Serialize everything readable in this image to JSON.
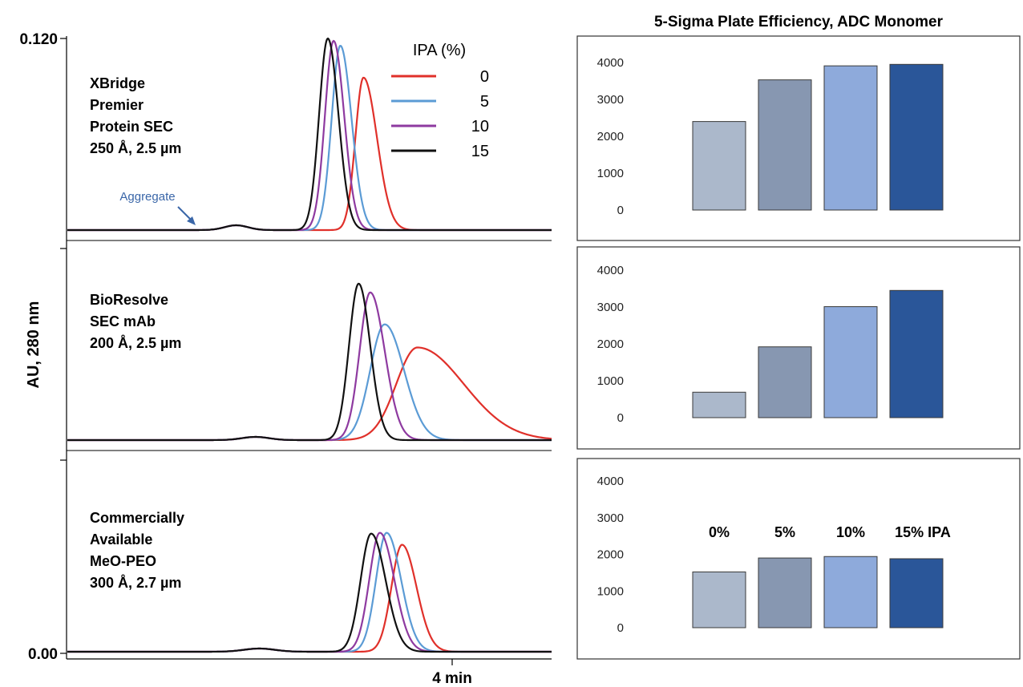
{
  "chart_data": [
    {
      "type": "line",
      "ylabel": "AU, 280 nm",
      "xlabel": "",
      "x_tick_label": "4 min",
      "y_top_label": "0.120",
      "y_bottom_label": "0.00",
      "legend_title": "IPA (%)",
      "legend_placement": "top-right",
      "legend": [
        "0",
        "5",
        "10",
        "15"
      ],
      "colors": [
        "#e0302a",
        "#5b9bd5",
        "#8e3aa0",
        "#111111"
      ],
      "xlim": [
        2,
        5.2
      ],
      "x_tick": 4,
      "ylim": [
        0,
        0.12
      ],
      "annotation": "Aggregate",
      "panels": [
        {
          "column": [
            "XBridge",
            "Premier",
            "Protein SEC",
            "250 Å, 2.5 µm"
          ],
          "aggregate": {
            "pos": 2.88,
            "height": 0.003,
            "width": 0.06
          },
          "series": [
            {
              "name": "0",
              "center": 3.54,
              "height": 0.0955,
              "sl": 0.042,
              "sr": 0.07
            },
            {
              "name": "5",
              "center": 3.42,
              "height": 0.1155,
              "sl": 0.045,
              "sr": 0.058
            },
            {
              "name": "10",
              "center": 3.385,
              "height": 0.1185,
              "sl": 0.045,
              "sr": 0.055
            },
            {
              "name": "15",
              "center": 3.355,
              "height": 0.12,
              "sl": 0.045,
              "sr": 0.055
            }
          ]
        },
        {
          "column": [
            "BioResolve",
            "SEC mAb",
            "200 Å, 2.5 µm"
          ],
          "aggregate": {
            "pos": 2.98,
            "height": 0.002,
            "width": 0.07
          },
          "series": [
            {
              "name": "0",
              "center": 3.82,
              "height": 0.058,
              "sl": 0.11,
              "sr": 0.24
            },
            {
              "name": "5",
              "center": 3.65,
              "height": 0.0725,
              "sl": 0.075,
              "sr": 0.1
            },
            {
              "name": "10",
              "center": 3.575,
              "height": 0.0925,
              "sl": 0.055,
              "sr": 0.075
            },
            {
              "name": "15",
              "center": 3.515,
              "height": 0.098,
              "sl": 0.05,
              "sr": 0.06
            }
          ]
        },
        {
          "column": [
            "Commercially",
            "Available",
            "MeO-PEO",
            "300 Å, 2.7 µm"
          ],
          "aggregate": {
            "pos": 3.0,
            "height": 0.002,
            "width": 0.08
          },
          "series": [
            {
              "name": "0",
              "center": 3.74,
              "height": 0.067,
              "sl": 0.055,
              "sr": 0.075
            },
            {
              "name": "5",
              "center": 3.66,
              "height": 0.0745,
              "sl": 0.055,
              "sr": 0.075
            },
            {
              "name": "10",
              "center": 3.625,
              "height": 0.0745,
              "sl": 0.055,
              "sr": 0.075
            },
            {
              "name": "15",
              "center": 3.58,
              "height": 0.074,
              "sl": 0.055,
              "sr": 0.075
            }
          ]
        }
      ]
    },
    {
      "type": "bar",
      "title": "5-Sigma Plate Efficiency, ADC Monomer",
      "categories": [
        "0%",
        "5%",
        "10%",
        "15% IPA"
      ],
      "colors": [
        "#abb8cb",
        "#8797b1",
        "#8eaadb",
        "#2a5699"
      ],
      "ylim": [
        0,
        4000
      ],
      "yticks": [
        0,
        1000,
        2000,
        3000,
        4000
      ],
      "category_labels_panel": 3,
      "panels": [
        {
          "values": [
            2400,
            3530,
            3910,
            3950
          ]
        },
        {
          "values": [
            690,
            1920,
            3010,
            3450
          ]
        },
        {
          "values": [
            1520,
            1900,
            1940,
            1880
          ]
        }
      ]
    }
  ]
}
